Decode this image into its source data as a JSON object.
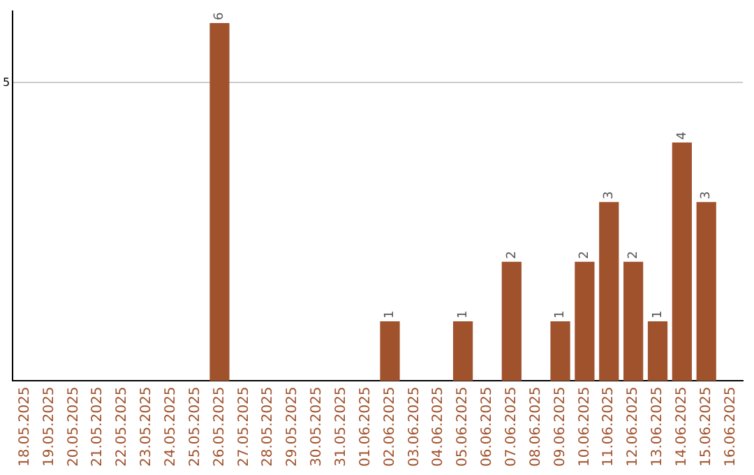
{
  "chart_data": {
    "type": "bar",
    "categories": [
      "18.05.2025",
      "19.05.2025",
      "20.05.2025",
      "21.05.2025",
      "22.05.2025",
      "23.05.2025",
      "24.05.2025",
      "25.05.2025",
      "26.05.2025",
      "27.05.2025",
      "28.05.2025",
      "29.05.2025",
      "30.05.2025",
      "31.05.2025",
      "01.06.2025",
      "02.06.2025",
      "03.06.2025",
      "04.06.2025",
      "05.06.2025",
      "06.06.2025",
      "07.06.2025",
      "08.06.2025",
      "09.06.2025",
      "10.06.2025",
      "11.06.2025",
      "12.06.2025",
      "13.06.2025",
      "14.06.2025",
      "15.06.2025",
      "16.06.2025"
    ],
    "values": [
      null,
      null,
      null,
      null,
      null,
      null,
      null,
      null,
      6,
      null,
      null,
      null,
      null,
      null,
      null,
      1,
      null,
      null,
      1,
      null,
      2,
      null,
      1,
      2,
      3,
      2,
      1,
      4,
      3,
      null
    ],
    "color": "#a0522d",
    "ylim": [
      0,
      6.2
    ],
    "yticks": [
      5
    ],
    "grid": "y",
    "legend": false,
    "data_labels": true
  }
}
